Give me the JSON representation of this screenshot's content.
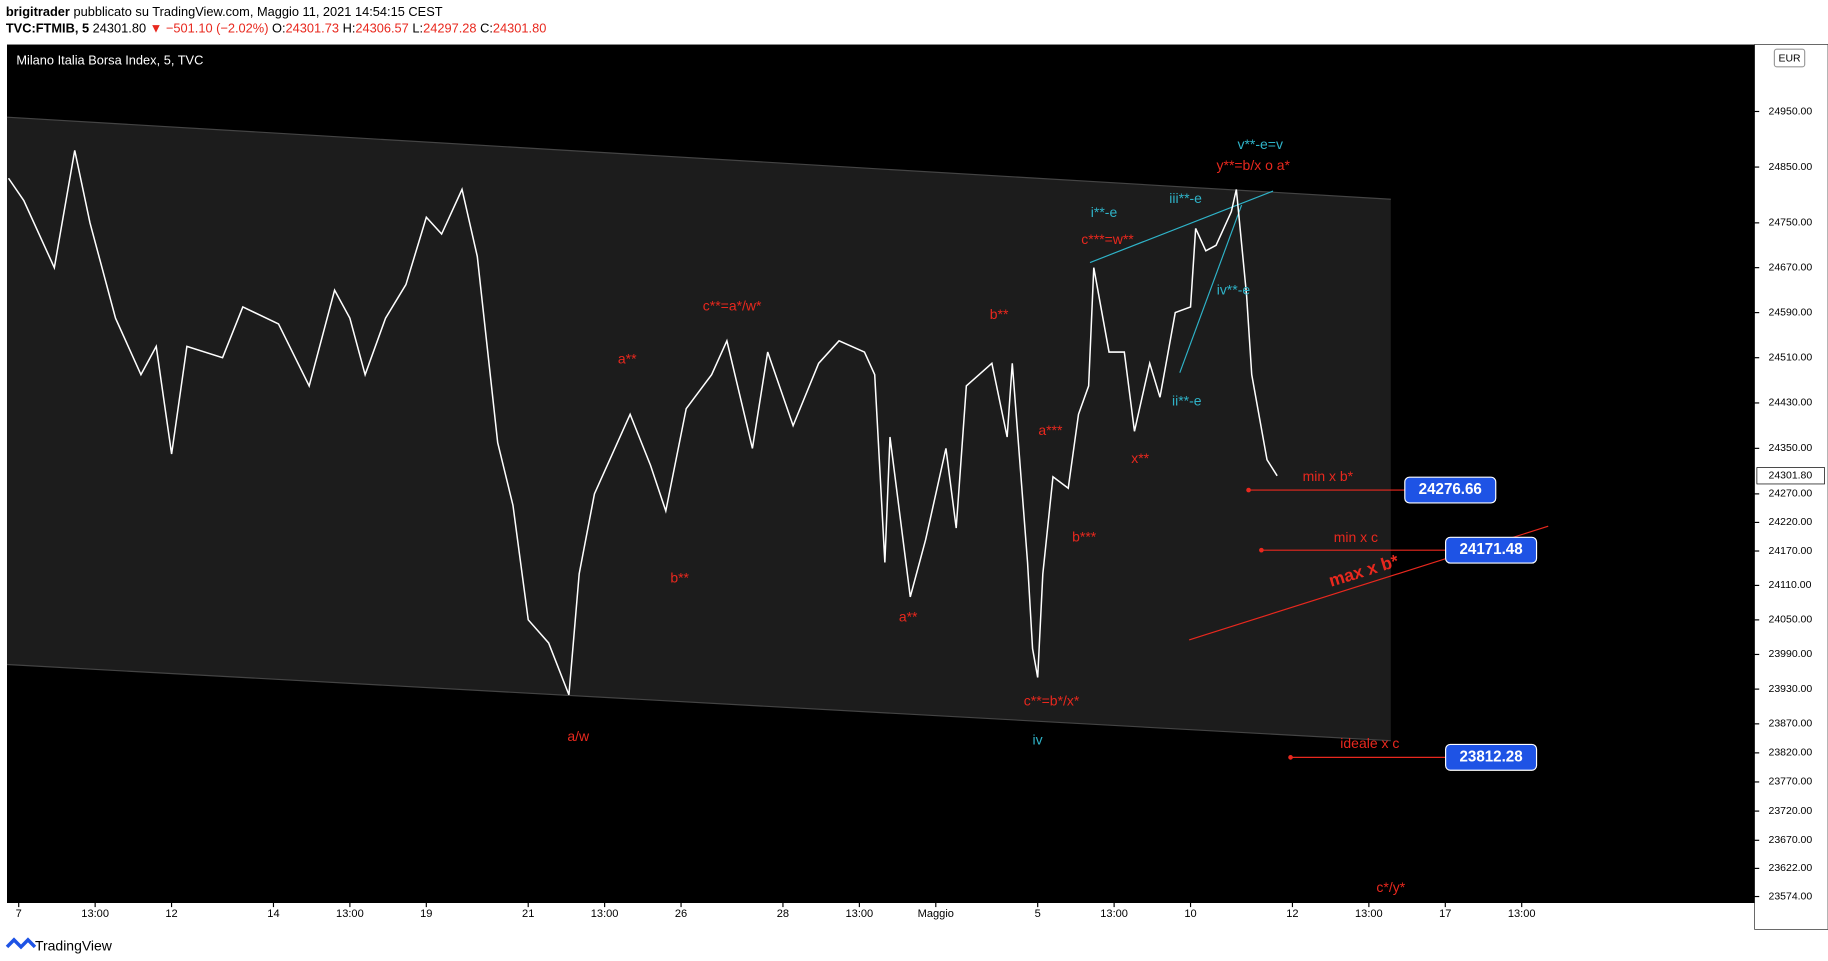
{
  "header": {
    "author": "brigitrader",
    "published": "pubblicato su TradingView.com, Maggio 11, 2021 14:54:15 CEST",
    "symbol": "TVC:FTMIB, 5",
    "last": "24301.80",
    "change": "▼ −501.10 (−2.02%)",
    "open_label": "O:",
    "open": "24301.73",
    "high_label": "H:",
    "high": "24306.57",
    "low_label": "L:",
    "low": "24297.28",
    "close_label": "C:",
    "close": "24301.80"
  },
  "footer": "TradingView",
  "chart_data": {
    "type": "line",
    "title": "Milano Italia Borsa Index, 5, TVC",
    "currency": "EUR",
    "log_scale": true,
    "grid": false,
    "xlim": [
      -0.23,
      34.07
    ],
    "ylim": [
      23564,
      25071
    ],
    "xticks": [
      {
        "value": 0,
        "label": "7"
      },
      {
        "value": 1.5,
        "label": "13:00"
      },
      {
        "value": 3,
        "label": "12"
      },
      {
        "value": 5,
        "label": "14"
      },
      {
        "value": 6.5,
        "label": "13:00"
      },
      {
        "value": 8,
        "label": "19"
      },
      {
        "value": 10,
        "label": "21"
      },
      {
        "value": 11.5,
        "label": "13:00"
      },
      {
        "value": 13,
        "label": "26"
      },
      {
        "value": 15,
        "label": "28"
      },
      {
        "value": 16.5,
        "label": "13:00"
      },
      {
        "value": 18,
        "label": "Maggio"
      },
      {
        "value": 20,
        "label": "5"
      },
      {
        "value": 21.5,
        "label": "13:00"
      },
      {
        "value": 23,
        "label": "10"
      },
      {
        "value": 25,
        "label": "12"
      },
      {
        "value": 26.5,
        "label": "13:00"
      },
      {
        "value": 28,
        "label": "17"
      },
      {
        "value": 29.5,
        "label": "13:00"
      }
    ],
    "yticks": [
      {
        "value": 24950,
        "label": "24950.00"
      },
      {
        "value": 24850,
        "label": "24850.00"
      },
      {
        "value": 24750,
        "label": "24750.00"
      },
      {
        "value": 24670,
        "label": "24670.00"
      },
      {
        "value": 24590,
        "label": "24590.00"
      },
      {
        "value": 24510,
        "label": "24510.00"
      },
      {
        "value": 24430,
        "label": "24430.00"
      },
      {
        "value": 24350,
        "label": "24350.00"
      },
      {
        "value": 24270,
        "label": "24270.00"
      },
      {
        "value": 24220,
        "label": "24220.00"
      },
      {
        "value": 24170,
        "label": "24170.00"
      },
      {
        "value": 24110,
        "label": "24110.00"
      },
      {
        "value": 24050,
        "label": "24050.00"
      },
      {
        "value": 23990,
        "label": "23990.00"
      },
      {
        "value": 23930,
        "label": "23930.00"
      },
      {
        "value": 23870,
        "label": "23870.00"
      },
      {
        "value": 23820,
        "label": "23820.00"
      },
      {
        "value": 23770,
        "label": "23770.00"
      },
      {
        "value": 23720,
        "label": "23720.00"
      },
      {
        "value": 23670,
        "label": "23670.00"
      },
      {
        "value": 23622,
        "label": "23622.00"
      },
      {
        "value": 23574,
        "label": "23574.00"
      }
    ],
    "series": [
      {
        "name": "FTMIB",
        "color": "#ffffff",
        "x": [
          -0.2,
          0.1,
          0.7,
          1.1,
          1.4,
          1.9,
          2.4,
          2.7,
          3.0,
          3.3,
          4.0,
          4.4,
          5.1,
          5.7,
          6.2,
          6.5,
          6.8,
          7.2,
          7.6,
          8.0,
          8.3,
          8.7,
          9.0,
          9.4,
          9.7,
          10.0,
          10.4,
          10.8,
          11.0,
          11.3,
          12.0,
          12.4,
          12.7,
          13.1,
          13.6,
          13.9,
          14.4,
          14.7,
          15.2,
          15.7,
          16.1,
          16.6,
          16.8,
          17.0,
          17.1,
          17.5,
          17.8,
          18.2,
          18.4,
          18.6,
          19.1,
          19.4,
          19.5,
          19.8,
          19.9,
          20.0,
          20.1,
          20.3,
          20.6,
          20.8,
          21.0,
          21.1,
          21.4,
          21.7,
          21.9,
          22.2,
          22.4,
          22.7,
          23.0,
          23.1,
          23.3,
          23.5,
          23.8,
          23.9,
          24.1,
          24.2,
          24.5,
          24.7
        ],
        "values": [
          24830,
          24790,
          24670,
          24880,
          24750,
          24580,
          24480,
          24530,
          24340,
          24530,
          24510,
          24600,
          24570,
          24460,
          24630,
          24580,
          24480,
          24580,
          24640,
          24760,
          24730,
          24810,
          24690,
          24360,
          24250,
          24050,
          24010,
          23920,
          24130,
          24270,
          24410,
          24320,
          24240,
          24420,
          24480,
          24540,
          24350,
          24520,
          24390,
          24500,
          24540,
          24520,
          24480,
          24150,
          24370,
          24090,
          24190,
          24350,
          24210,
          24460,
          24500,
          24370,
          24500,
          24150,
          24000,
          23950,
          24130,
          24300,
          24280,
          24410,
          24460,
          24670,
          24520,
          24520,
          24380,
          24500,
          24440,
          24590,
          24600,
          24740,
          24700,
          24710,
          24770,
          24810,
          24620,
          24480,
          24330,
          24301.8
        ]
      }
    ],
    "last_price": {
      "value": 24301.8,
      "label": "24301.80"
    },
    "levels": [
      {
        "text": "min x b*",
        "value": 24276.66
      },
      {
        "text": "min x c",
        "value": 24171.48
      },
      {
        "text": "ideale x c",
        "value": 23812.28
      }
    ],
    "annotations": [
      "v**-e=v",
      "y**=b/x o a*",
      "iii**-e",
      "i**-e",
      "c***=w**",
      "iv**-e",
      "c**=a*/w*",
      "b**",
      "a**",
      "ii**-e",
      "a***",
      "x**",
      "b***",
      "max x b*",
      "b**",
      "a**",
      "c**=b*/x*",
      "a/w",
      "iv",
      "c*/y*"
    ]
  }
}
